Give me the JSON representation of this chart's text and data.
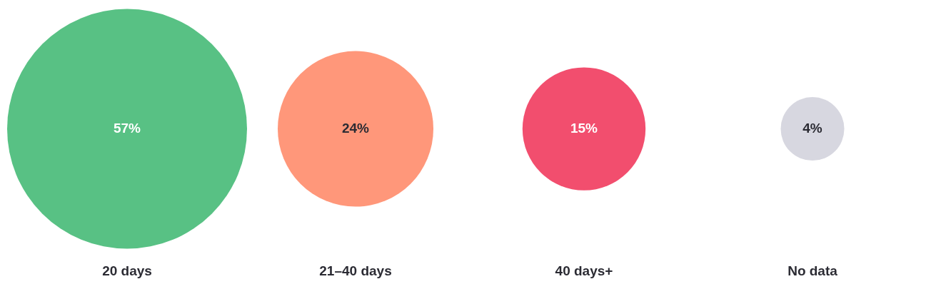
{
  "chart_data": {
    "type": "other",
    "categories": [
      "20 days",
      "21–40 days",
      "40 days+",
      "No data"
    ],
    "values": [
      57,
      24,
      15,
      4
    ],
    "colors": [
      "#58c184",
      "#ff977a",
      "#f24e6e",
      "#d7d7e0"
    ],
    "value_labels": [
      "57%",
      "24%",
      "15%",
      "4%"
    ]
  }
}
